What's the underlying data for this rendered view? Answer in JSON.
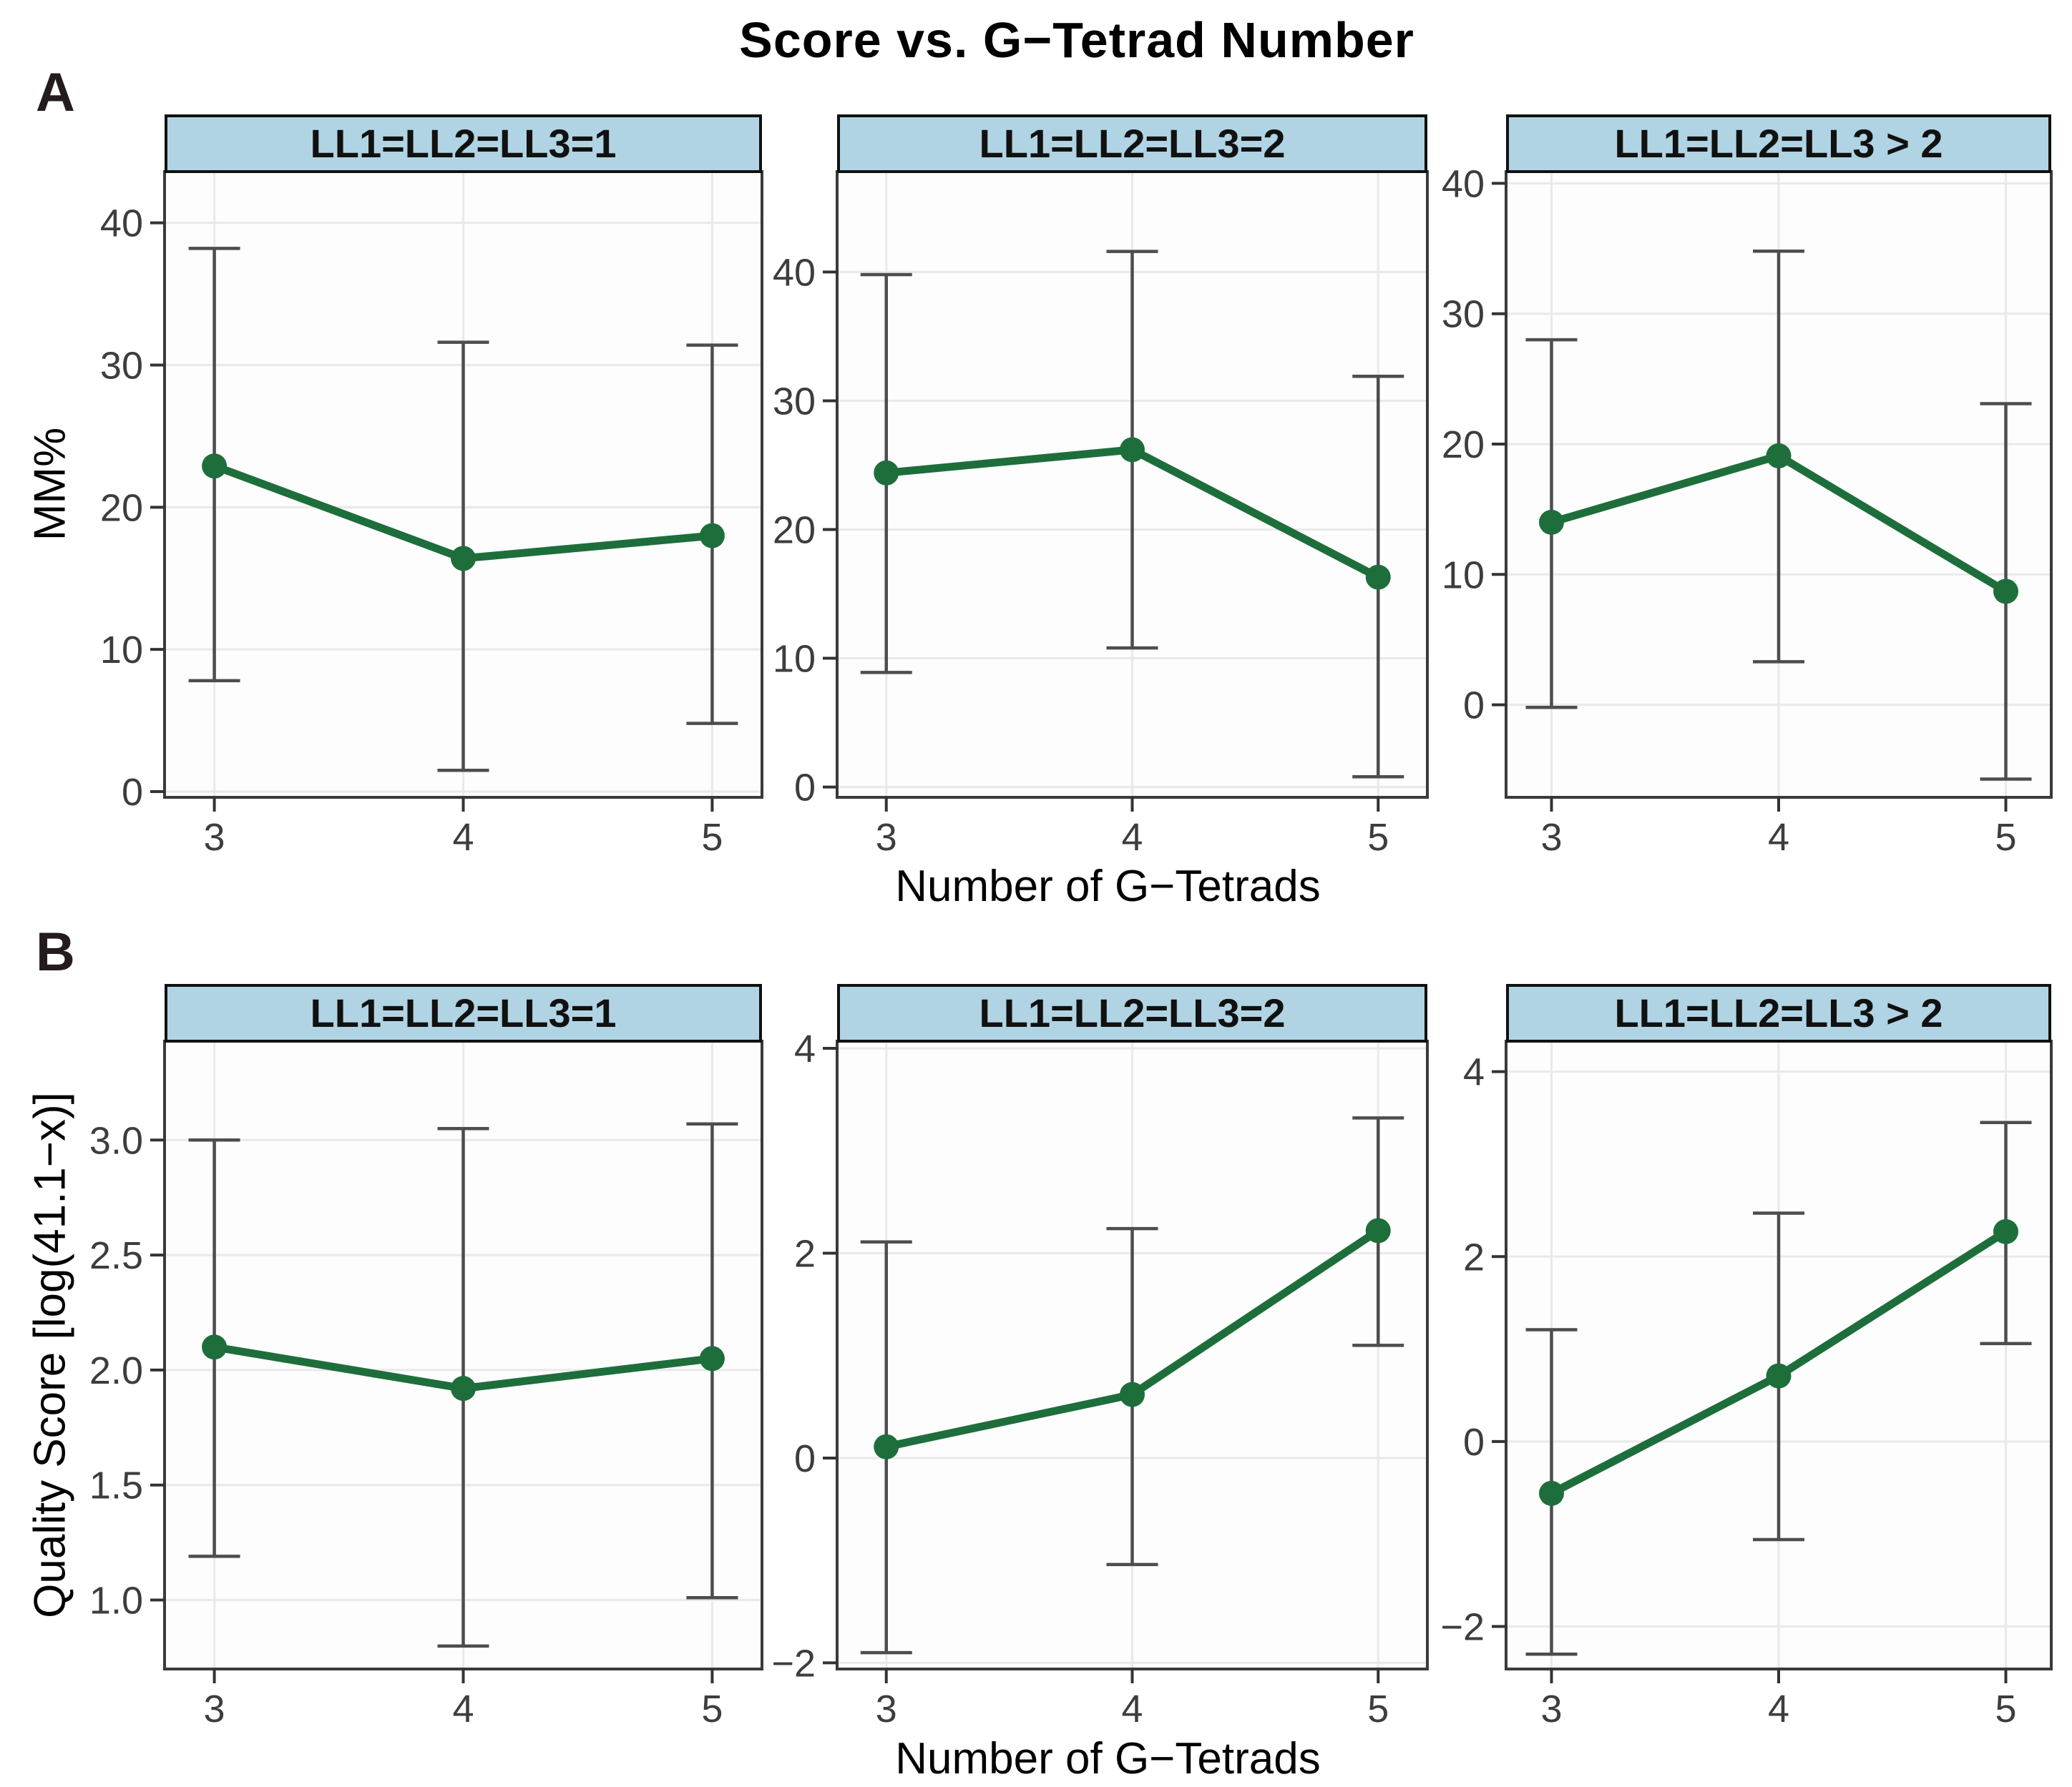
{
  "title": "Score vs. G−Tetrad Number",
  "sections": {
    "a": {
      "label": "A",
      "ylabel": "MM%",
      "xlabel": "Number of G−Tetrads"
    },
    "b": {
      "label": "B",
      "ylabel": "Quality Score [log(41.1−x)]",
      "xlabel": "Number of G−Tetrads"
    }
  },
  "colors": {
    "line": "#1d6e3b",
    "point": "#1d6e3b",
    "errorbar": "#4d4d4d",
    "strip_bg": "#b0d4e3",
    "strip_border": "#111111",
    "strip_text": "#111111",
    "panel_bg": "#fdfdfd",
    "panel_border": "#3a3a3a",
    "grid": "#e9e9e9",
    "tick": "#333333",
    "tick_label": "#3d3d3d",
    "page_bg": "#ffffff"
  },
  "chart_data": [
    {
      "row": "A",
      "type": "line",
      "facet": "LL1=LL2=LL3=1",
      "x": [
        3,
        4,
        5
      ],
      "xlim": [
        2.8,
        5.2
      ],
      "xtick_labels": [
        "3",
        "4",
        "5"
      ],
      "y": [
        22.9,
        16.4,
        18.0
      ],
      "err_low": [
        7.8,
        1.5,
        4.8
      ],
      "err_high": [
        38.2,
        31.6,
        31.4
      ],
      "ylim": [
        -0.4,
        43.6
      ],
      "ytick_values": [
        0,
        10,
        20,
        30,
        40
      ],
      "ytick_labels": [
        "0",
        "10",
        "20",
        "30",
        "40"
      ],
      "ylabel": "MM%",
      "xlabel": "Number of G−Tetrads",
      "grid": true,
      "legend": false
    },
    {
      "row": "A",
      "type": "line",
      "facet": "LL1=LL2=LL3=2",
      "x": [
        3,
        4,
        5
      ],
      "xlim": [
        2.8,
        5.2
      ],
      "xtick_labels": [
        "3",
        "4",
        "5"
      ],
      "y": [
        24.4,
        26.2,
        16.3
      ],
      "err_low": [
        8.9,
        10.8,
        0.8
      ],
      "err_high": [
        39.8,
        41.6,
        31.9
      ],
      "ylim": [
        -0.8,
        47.8
      ],
      "ytick_values": [
        0,
        10,
        20,
        30,
        40
      ],
      "ytick_labels": [
        "0",
        "10",
        "20",
        "30",
        "40"
      ],
      "ylabel": "MM%",
      "xlabel": "Number of G−Tetrads",
      "grid": true,
      "legend": false
    },
    {
      "row": "A",
      "type": "line",
      "facet": "LL1=LL2=LL3 > 2",
      "x": [
        3,
        4,
        5
      ],
      "xlim": [
        2.8,
        5.2
      ],
      "xtick_labels": [
        "3",
        "4",
        "5"
      ],
      "y": [
        14.0,
        19.1,
        8.7
      ],
      "err_low": [
        -0.2,
        3.3,
        -5.7
      ],
      "err_high": [
        28.0,
        34.8,
        23.1
      ],
      "ylim": [
        -7.1,
        40.9
      ],
      "ytick_values": [
        0,
        10,
        20,
        30,
        40
      ],
      "ytick_labels": [
        "0",
        "10",
        "20",
        "30",
        "40"
      ],
      "ylabel": "MM%",
      "xlabel": "Number of G−Tetrads",
      "grid": true,
      "legend": false
    },
    {
      "row": "B",
      "type": "line",
      "facet": "LL1=LL2=LL3=1",
      "x": [
        3,
        4,
        5
      ],
      "xlim": [
        2.8,
        5.2
      ],
      "xtick_labels": [
        "3",
        "4",
        "5"
      ],
      "y": [
        2.1,
        1.92,
        2.05
      ],
      "err_low": [
        1.19,
        0.8,
        1.01
      ],
      "err_high": [
        3.0,
        3.05,
        3.07
      ],
      "ylim": [
        0.7,
        3.43
      ],
      "ytick_values": [
        1.0,
        1.5,
        2.0,
        2.5,
        3.0
      ],
      "ytick_labels": [
        "1.0",
        "1.5",
        "2.0",
        "2.5",
        "3.0"
      ],
      "ylabel": "Quality Score [log(41.1−x)]",
      "xlabel": "Number of G−Tetrads",
      "grid": true,
      "legend": false
    },
    {
      "row": "B",
      "type": "line",
      "facet": "LL1=LL2=LL3=2",
      "x": [
        3,
        4,
        5
      ],
      "xlim": [
        2.8,
        5.2
      ],
      "xtick_labels": [
        "3",
        "4",
        "5"
      ],
      "y": [
        0.11,
        0.62,
        2.22
      ],
      "err_low": [
        -1.9,
        -1.04,
        1.1
      ],
      "err_high": [
        2.11,
        2.24,
        3.32
      ],
      "ylim": [
        -2.06,
        4.07
      ],
      "ytick_values": [
        -2,
        0,
        2,
        4
      ],
      "ytick_labels": [
        "−2",
        "0",
        "2",
        "4"
      ],
      "ylabel": "Quality Score [log(41.1−x)]",
      "xlabel": "Number of G−Tetrads",
      "grid": true,
      "legend": false
    },
    {
      "row": "B",
      "type": "line",
      "facet": "LL1=LL2=LL3 > 2",
      "x": [
        3,
        4,
        5
      ],
      "xlim": [
        2.8,
        5.2
      ],
      "xtick_labels": [
        "3",
        "4",
        "5"
      ],
      "y": [
        -0.56,
        0.71,
        2.27
      ],
      "err_low": [
        -2.3,
        -1.06,
        1.06
      ],
      "err_high": [
        1.21,
        2.47,
        3.45
      ],
      "ylim": [
        -2.46,
        4.33
      ],
      "ytick_values": [
        -2,
        0,
        2,
        4
      ],
      "ytick_labels": [
        "−2",
        "0",
        "2",
        "4"
      ],
      "ylabel": "Quality Score [log(41.1−x)]",
      "xlabel": "Number of G−Tetrads",
      "grid": true,
      "legend": false
    }
  ]
}
